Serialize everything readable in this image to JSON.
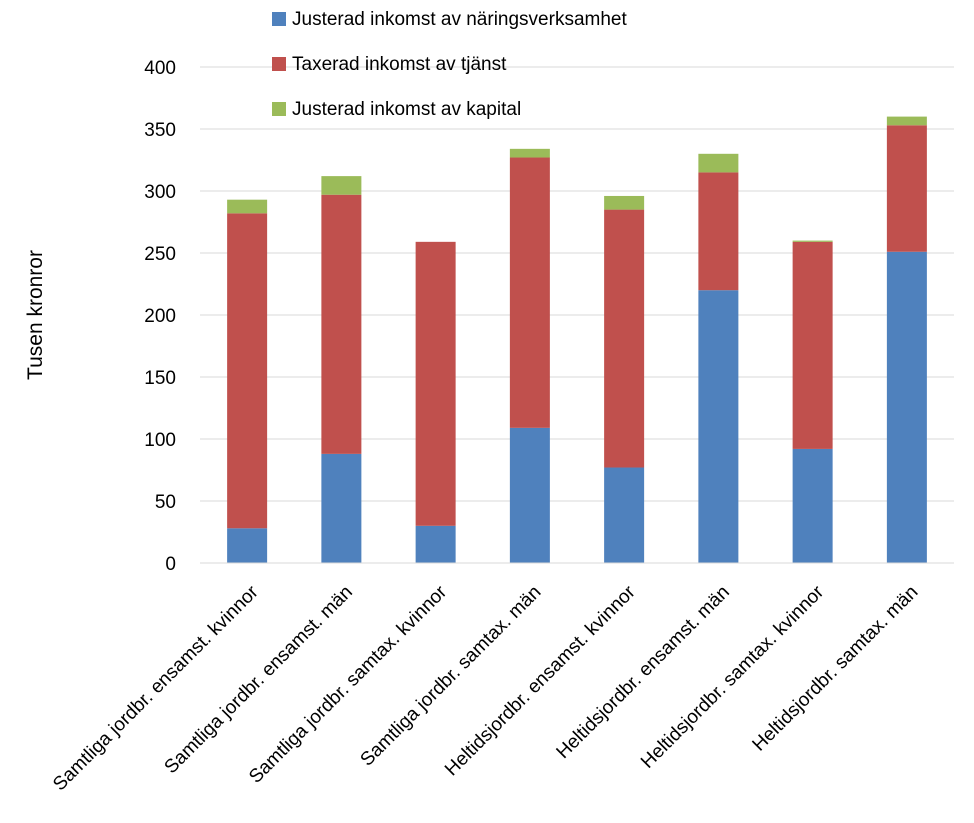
{
  "chart_data": {
    "type": "bar",
    "stacked": true,
    "ylabel": "Tusen kronror",
    "xlabel": "",
    "ylim": [
      0,
      400
    ],
    "yticks": [
      "0",
      "50",
      "100",
      "150",
      "200",
      "250",
      "300",
      "350",
      "400"
    ],
    "grid": true,
    "legend_position": "top",
    "categories": [
      "Samtliga jordbr. ensamst. kvinnor",
      "Samtliga jordbr. ensamst. män",
      "Samtliga jordbr. samtax. kvinnor",
      "Samtliga jordbr. samtax. män",
      "Heltidsjordbr. ensamst. kvinnor",
      "Heltidsjordbr. ensamst. män",
      "Heltidsjordbr. samtax. kvinnor",
      "Heltidsjordbr. samtax. män"
    ],
    "series": [
      {
        "name": "Justerad inkomst av näringsverksamhet",
        "color": "#4f81bd",
        "values": [
          28,
          88,
          30,
          109,
          77,
          220,
          92,
          251
        ]
      },
      {
        "name": "Taxerad inkomst av tjänst",
        "color": "#c0504d",
        "values": [
          254,
          209,
          229,
          218,
          208,
          95,
          167,
          102
        ]
      },
      {
        "name": "Justerad inkomst av kapital",
        "color": "#9bbb59",
        "values": [
          11,
          15,
          0,
          7,
          11,
          15,
          1,
          7
        ]
      }
    ]
  }
}
